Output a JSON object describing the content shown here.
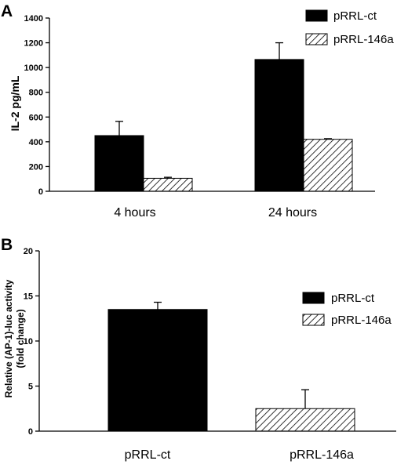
{
  "colors": {
    "solid": "#000000",
    "hatch": "#000000",
    "background": "#ffffff"
  },
  "chart_data": [
    {
      "panel": "A",
      "type": "bar",
      "ylabel": "IL-2 pg/mL",
      "categories": [
        "4 hours",
        "24 hours"
      ],
      "ylim": [
        0,
        1400
      ],
      "yticks": [
        0,
        200,
        400,
        600,
        800,
        1000,
        1200,
        1400
      ],
      "series": [
        {
          "name": "pRRL-ct",
          "pattern": "solid",
          "values": [
            450,
            1065
          ],
          "errors": [
            115,
            135
          ]
        },
        {
          "name": "pRRL-146a",
          "pattern": "hatch",
          "values": [
            105,
            420
          ],
          "errors": [
            8,
            5
          ]
        }
      ],
      "legend_position": "top-right"
    },
    {
      "panel": "B",
      "type": "bar",
      "ylabel_lines": [
        "Relative (AP-1)-luc activity",
        "(fold change)"
      ],
      "categories": [
        "pRRL-ct",
        "pRRL-146a"
      ],
      "ylim": [
        0,
        20
      ],
      "yticks": [
        0,
        5,
        10,
        15,
        20
      ],
      "series": [
        {
          "name": "pRRL-ct",
          "pattern": "solid",
          "values": [
            13.5,
            null
          ],
          "errors": [
            0.8,
            null
          ]
        },
        {
          "name": "pRRL-146a",
          "pattern": "hatch",
          "values": [
            null,
            2.5
          ],
          "errors": [
            null,
            2.1
          ]
        }
      ],
      "legend_position": "right"
    }
  ]
}
